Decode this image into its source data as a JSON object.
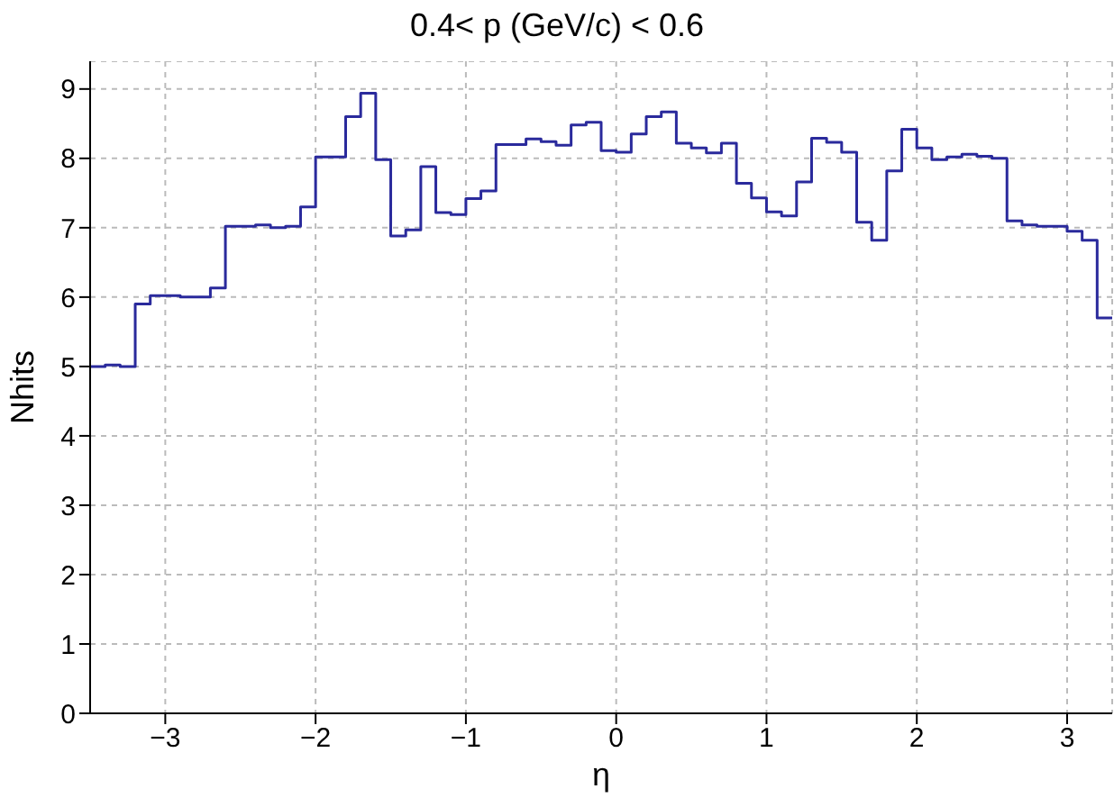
{
  "chart_data": {
    "type": "histogram",
    "title": "0.4< p (GeV/c) < 0.6",
    "xlabel": "η",
    "ylabel": "Nhits",
    "bins": [
      -3.5,
      -3.4,
      -3.3,
      -3.2,
      -3.1,
      -3.0,
      -2.9,
      -2.8,
      -2.7,
      -2.6,
      -2.5,
      -2.4,
      -2.3,
      -2.2,
      -2.1,
      -2.0,
      -1.9,
      -1.8,
      -1.7,
      -1.6,
      -1.5,
      -1.4,
      -1.3,
      -1.2,
      -1.1,
      -1.0,
      -0.9,
      -0.8,
      -0.7,
      -0.6,
      -0.5,
      -0.4,
      -0.3,
      -0.2,
      -0.1,
      0.0,
      0.1,
      0.2,
      0.3,
      0.4,
      0.5,
      0.6,
      0.7,
      0.8,
      0.9,
      1.0,
      1.1,
      1.2,
      1.3,
      1.4,
      1.5,
      1.6,
      1.7,
      1.8,
      1.9,
      2.0,
      2.1,
      2.2,
      2.3,
      2.4,
      2.5,
      2.6,
      2.7,
      2.8,
      2.9,
      3.0,
      3.1,
      3.2,
      3.3
    ],
    "values": [
      5.0,
      5.02,
      5.0,
      5.9,
      6.02,
      6.02,
      6.0,
      6.0,
      6.13,
      7.02,
      7.02,
      7.04,
      7.0,
      7.02,
      7.3,
      8.02,
      8.02,
      8.6,
      8.94,
      7.98,
      6.88,
      6.97,
      7.88,
      7.22,
      7.19,
      7.42,
      7.53,
      8.2,
      8.2,
      8.28,
      8.24,
      8.19,
      8.48,
      8.52,
      8.11,
      8.09,
      8.35,
      8.6,
      8.67,
      8.22,
      8.15,
      8.08,
      8.22,
      7.64,
      7.43,
      7.23,
      7.17,
      7.66,
      8.29,
      8.23,
      8.09,
      7.08,
      6.82,
      7.82,
      8.42,
      8.15,
      7.98,
      8.02,
      8.06,
      8.03,
      8.0,
      7.1,
      7.04,
      7.02,
      7.02,
      6.95,
      6.82,
      5.7
    ],
    "color": "#2a2a9c",
    "xlim": [
      -3.5,
      3.3
    ],
    "xticks": [
      -3,
      -2,
      -1,
      0,
      1,
      2,
      3
    ],
    "ylim": [
      0,
      9.4
    ],
    "yticks": [
      0,
      1,
      2,
      3,
      4,
      5,
      6,
      7,
      8,
      9
    ],
    "grid": true,
    "legend": false
  }
}
